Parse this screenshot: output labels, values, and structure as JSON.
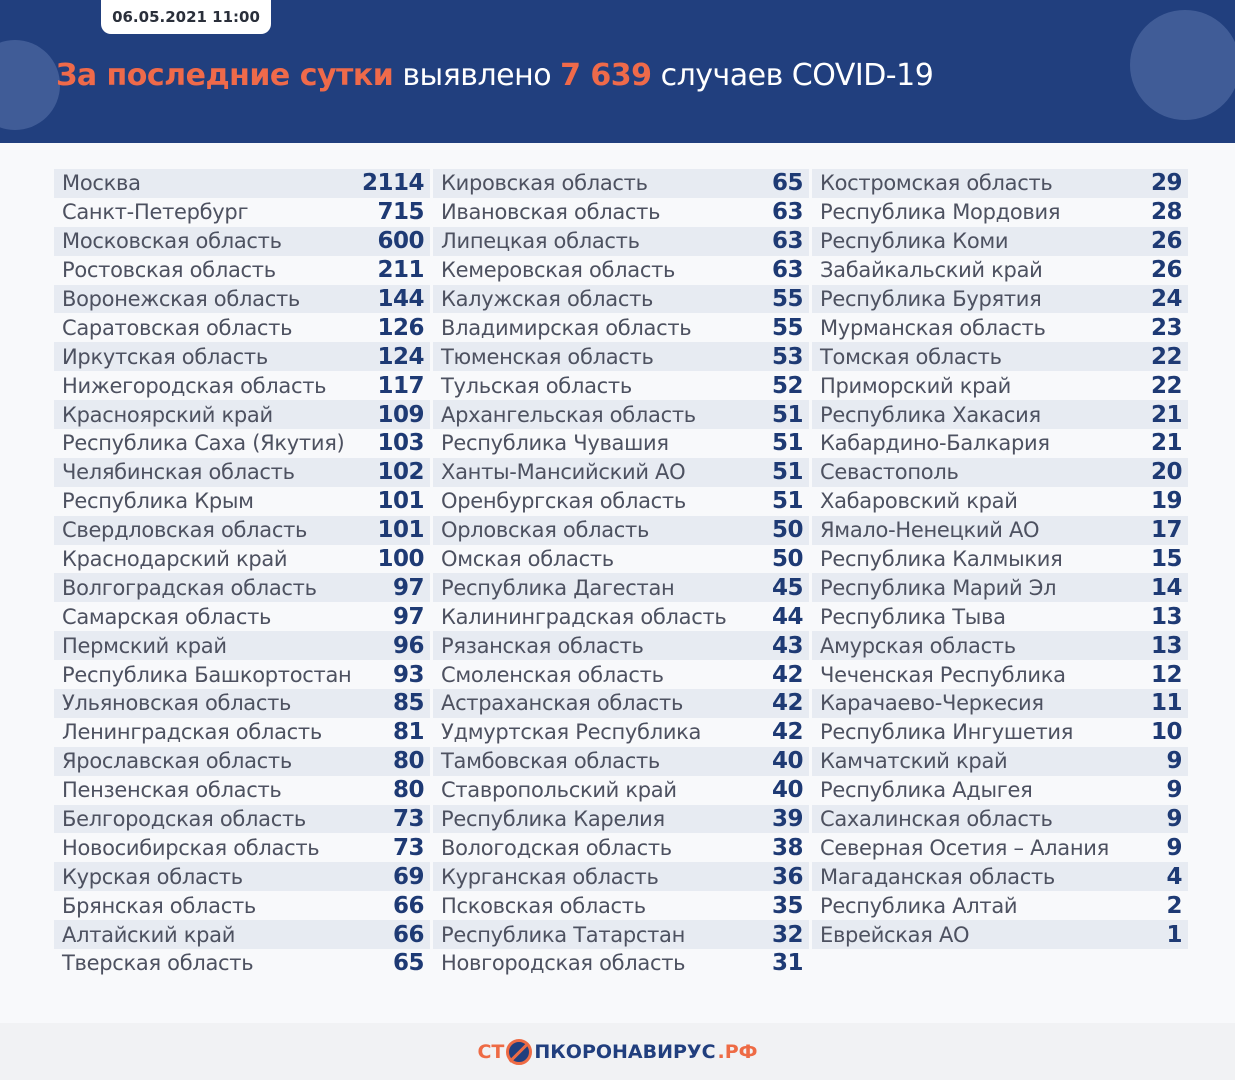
{
  "header": {
    "date": "06.05.2021 11:00",
    "title_highlight": "За последние сутки",
    "title_mid": " выявлено ",
    "total": "7 639",
    "title_end": " случаев COVID-19"
  },
  "colors": {
    "header_bg": "#213f7e",
    "accent": "#ef6a4a",
    "number": "#1e3a74"
  },
  "columns": [
    [
      [
        "Москва",
        "2114"
      ],
      [
        "Санкт-Петербург",
        "715"
      ],
      [
        "Московская область",
        "600"
      ],
      [
        "Ростовская область",
        "211"
      ],
      [
        "Воронежская область",
        "144"
      ],
      [
        "Саратовская область",
        "126"
      ],
      [
        "Иркутская область",
        "124"
      ],
      [
        "Нижегородская область",
        "117"
      ],
      [
        "Красноярский край",
        "109"
      ],
      [
        "Республика Саха (Якутия)",
        "103"
      ],
      [
        "Челябинская область",
        "102"
      ],
      [
        "Республика Крым",
        "101"
      ],
      [
        "Свердловская область",
        "101"
      ],
      [
        "Краснодарский край",
        "100"
      ],
      [
        "Волгоградская область",
        "97"
      ],
      [
        "Самарская область",
        "97"
      ],
      [
        "Пермский край",
        "96"
      ],
      [
        "Республика Башкортостан",
        "93"
      ],
      [
        "Ульяновская область",
        "85"
      ],
      [
        "Ленинградская область",
        "81"
      ],
      [
        "Ярославская область",
        "80"
      ],
      [
        "Пензенская область",
        "80"
      ],
      [
        "Белгородская область",
        "73"
      ],
      [
        "Новосибирская область",
        "73"
      ],
      [
        "Курская область",
        "69"
      ],
      [
        "Брянская область",
        "66"
      ],
      [
        "Алтайский край",
        "66"
      ],
      [
        "Тверская область",
        "65"
      ]
    ],
    [
      [
        "Кировская область",
        "65"
      ],
      [
        "Ивановская область",
        "63"
      ],
      [
        "Липецкая область",
        "63"
      ],
      [
        "Кемеровская область",
        "63"
      ],
      [
        "Калужская область",
        "55"
      ],
      [
        "Владимирская область",
        "55"
      ],
      [
        "Тюменская область",
        "53"
      ],
      [
        "Тульская область",
        "52"
      ],
      [
        "Архангельская область",
        "51"
      ],
      [
        "Республика Чувашия",
        "51"
      ],
      [
        "Ханты-Мансийский АО",
        "51"
      ],
      [
        "Оренбургская область",
        "51"
      ],
      [
        "Орловская область",
        "50"
      ],
      [
        "Омская область",
        "50"
      ],
      [
        "Республика Дагестан",
        "45"
      ],
      [
        "Калининградская область",
        "44"
      ],
      [
        "Рязанская область",
        "43"
      ],
      [
        "Смоленская область",
        "42"
      ],
      [
        "Астраханская область",
        "42"
      ],
      [
        "Удмуртская Республика",
        "42"
      ],
      [
        "Тамбовская область",
        "40"
      ],
      [
        "Ставропольский край",
        "40"
      ],
      [
        "Республика Карелия",
        "39"
      ],
      [
        "Вологодская область",
        "38"
      ],
      [
        "Курганская область",
        "36"
      ],
      [
        "Псковская область",
        "35"
      ],
      [
        "Республика Татарстан",
        "32"
      ],
      [
        "Новгородская область",
        "31"
      ]
    ],
    [
      [
        "Костромская область",
        "29"
      ],
      [
        "Республика Мордовия",
        "28"
      ],
      [
        "Республика Коми",
        "26"
      ],
      [
        "Забайкальский край",
        "26"
      ],
      [
        "Республика Бурятия",
        "24"
      ],
      [
        "Мурманская область",
        "23"
      ],
      [
        "Томская область",
        "22"
      ],
      [
        "Приморский край",
        "22"
      ],
      [
        "Республика Хакасия",
        "21"
      ],
      [
        "Кабардино-Балкария",
        "21"
      ],
      [
        "Севастополь",
        "20"
      ],
      [
        "Хабаровский край",
        "19"
      ],
      [
        "Ямало-Ненецкий АО",
        "17"
      ],
      [
        "Республика Калмыкия",
        "15"
      ],
      [
        "Республика Марий Эл",
        "14"
      ],
      [
        "Республика Тыва",
        "13"
      ],
      [
        "Амурская область",
        "13"
      ],
      [
        "Чеченская Республика",
        "12"
      ],
      [
        "Карачаево-Черкесия",
        "11"
      ],
      [
        "Республика Ингушетия",
        "10"
      ],
      [
        "Камчатский край",
        "9"
      ],
      [
        "Республика Адыгея",
        "9"
      ],
      [
        "Сахалинская область",
        "9"
      ],
      [
        "Северная Осетия – Алания",
        "9"
      ],
      [
        "Магаданская область",
        "4"
      ],
      [
        "Республика Алтай",
        "2"
      ],
      [
        "Еврейская АО",
        "1"
      ]
    ]
  ],
  "footer": {
    "logo_part1": "СТ",
    "logo_part2": "ПКОРОНАВИРУС",
    "logo_part3": ".РФ"
  }
}
